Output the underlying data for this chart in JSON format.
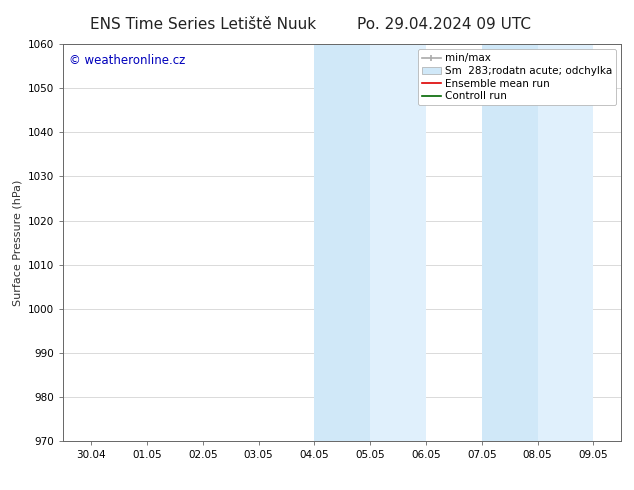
{
  "title_left": "ENS Time Series Letiště Nuuk",
  "title_right": "Po. 29.04.2024 09 UTC",
  "ylabel": "Surface Pressure (hPa)",
  "ylim": [
    970,
    1060
  ],
  "yticks": [
    970,
    980,
    990,
    1000,
    1010,
    1020,
    1030,
    1040,
    1050,
    1060
  ],
  "xtick_labels": [
    "30.04",
    "01.05",
    "02.05",
    "03.05",
    "04.05",
    "05.05",
    "06.05",
    "07.05",
    "08.05",
    "09.05"
  ],
  "watermark": "© weatheronline.cz",
  "watermark_color": "#0000bb",
  "bg_color": "#ffffff",
  "plot_bg_color": "#ffffff",
  "shaded_bands": [
    {
      "xstart": 4,
      "xend": 5,
      "color": "#d0e8f8"
    },
    {
      "xstart": 5,
      "xend": 6,
      "color": "#e0f0fc"
    },
    {
      "xstart": 7,
      "xend": 8,
      "color": "#d0e8f8"
    },
    {
      "xstart": 8,
      "xend": 9,
      "color": "#e0f0fc"
    }
  ],
  "legend_entries": [
    {
      "label": "min/max",
      "color": "#aaaaaa",
      "style": "errorbar"
    },
    {
      "label": "Sm  283;rodatn acute; odchylka",
      "color": "#d0e8f8",
      "style": "band"
    },
    {
      "label": "Ensemble mean run",
      "color": "#dd0000",
      "style": "line"
    },
    {
      "label": "Controll run",
      "color": "#006600",
      "style": "line"
    }
  ],
  "title_fontsize": 11,
  "tick_fontsize": 7.5,
  "legend_fontsize": 7.5,
  "watermark_fontsize": 8.5,
  "ylabel_fontsize": 8
}
